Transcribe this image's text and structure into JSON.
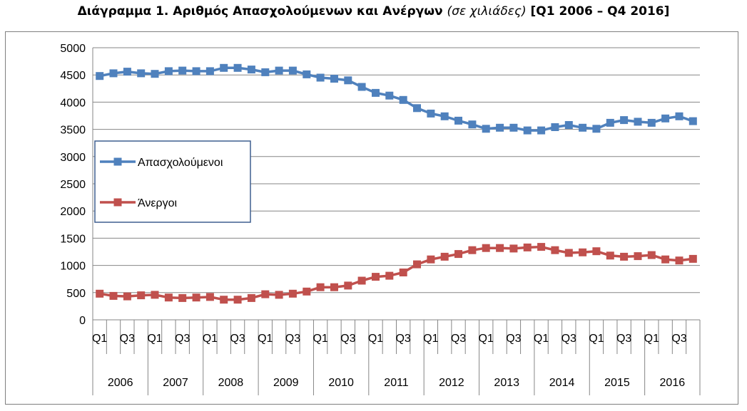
{
  "title": {
    "main": "Διάγραμμα 1. Αριθμός Απασχολούμενων και Ανέργων",
    "unit": "(σε χιλιάδες)",
    "range": "[Q1 2006 – Q4 2016]"
  },
  "chart_data": {
    "type": "line",
    "years": [
      "2006",
      "2007",
      "2008",
      "2009",
      "2010",
      "2011",
      "2012",
      "2013",
      "2014",
      "2015",
      "2016"
    ],
    "quarter_tick_labels": [
      "Q1",
      "Q3"
    ],
    "ylim": [
      0,
      5000
    ],
    "yticks": [
      "0",
      "500",
      "1000",
      "1500",
      "2000",
      "2500",
      "3000",
      "3500",
      "4000",
      "4500",
      "5000"
    ],
    "grid": true,
    "legend_position": "left-middle",
    "series": [
      {
        "name": "Απασχολούμενοι",
        "color": "#4F81BD",
        "marker": "square",
        "values": [
          4480,
          4530,
          4560,
          4530,
          4520,
          4570,
          4580,
          4570,
          4570,
          4630,
          4630,
          4600,
          4550,
          4580,
          4580,
          4510,
          4450,
          4430,
          4400,
          4280,
          4170,
          4120,
          4040,
          3890,
          3790,
          3740,
          3660,
          3590,
          3510,
          3530,
          3530,
          3480,
          3480,
          3540,
          3580,
          3530,
          3510,
          3620,
          3670,
          3640,
          3620,
          3700,
          3740,
          3650
        ]
      },
      {
        "name": "Άνεργοι",
        "color": "#C0504D",
        "marker": "square",
        "values": [
          480,
          440,
          430,
          450,
          460,
          410,
          400,
          410,
          420,
          370,
          370,
          400,
          470,
          460,
          480,
          520,
          600,
          600,
          630,
          720,
          790,
          810,
          870,
          1020,
          1110,
          1160,
          1210,
          1280,
          1320,
          1320,
          1310,
          1330,
          1340,
          1280,
          1230,
          1240,
          1260,
          1180,
          1160,
          1170,
          1190,
          1110,
          1090,
          1120
        ]
      }
    ]
  }
}
